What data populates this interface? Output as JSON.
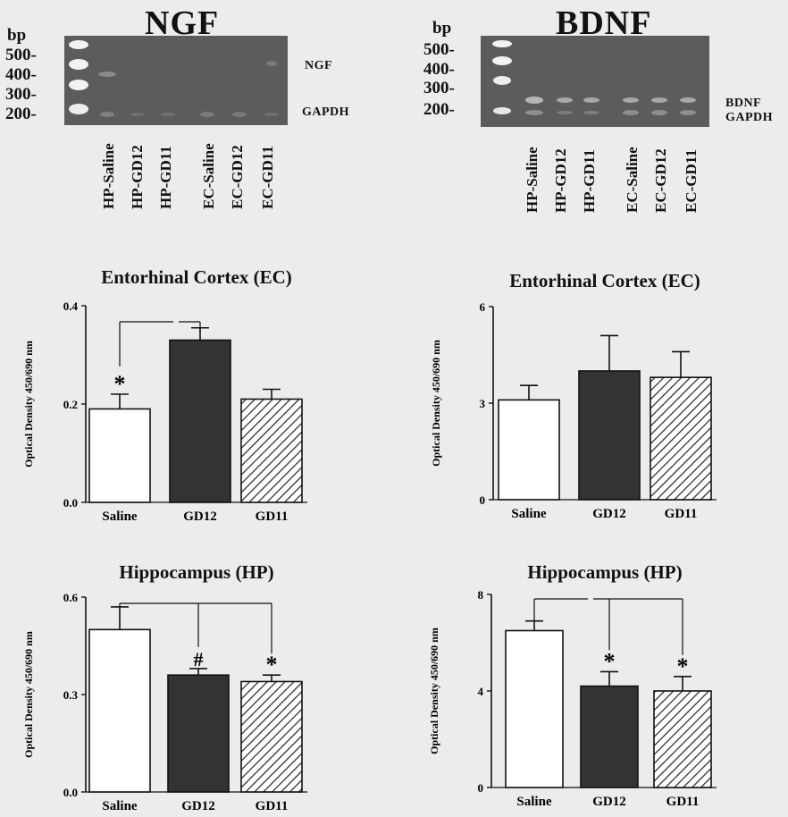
{
  "gels": [
    {
      "title": "NGF",
      "bp_label": "bp",
      "ladder": [
        "500-",
        "400-",
        "300-",
        "200-"
      ],
      "band_labels": [
        "NGF",
        "GAPDH"
      ],
      "lanes": [
        "HP-Saline",
        "HP-GD12",
        "HP-GD11",
        "EC-Saline",
        "EC-GD12",
        "EC-GD11"
      ]
    },
    {
      "title": "BDNF",
      "bp_label": "bp",
      "ladder": [
        "500-",
        "400-",
        "300-",
        "200-"
      ],
      "band_labels": [
        "BDNF",
        "GAPDH"
      ],
      "lanes": [
        "HP-Saline",
        "HP-GD12",
        "HP-GD11",
        "EC-Saline",
        "EC-GD12",
        "EC-GD11"
      ]
    }
  ],
  "chart_data": [
    {
      "type": "bar",
      "title": "Entorhinal Cortex (EC)",
      "ylabel": "Optical Density 450/690 nm",
      "categories": [
        "Saline",
        "GD12",
        "GD11"
      ],
      "values": [
        0.19,
        0.33,
        0.21
      ],
      "errors": [
        0.03,
        0.025,
        0.02
      ],
      "ylim": [
        0,
        0.4
      ],
      "yticks": [
        "0.0",
        "0.2",
        "0.4"
      ],
      "fills": [
        "white",
        "dark",
        "hatch"
      ],
      "sig_marks": [
        "*",
        "",
        ""
      ]
    },
    {
      "type": "bar",
      "title": "Entorhinal Cortex (EC)",
      "ylabel": "Optical Density 450/690 nm",
      "categories": [
        "Saline",
        "GD12",
        "GD11"
      ],
      "values": [
        3.1,
        4.0,
        3.8
      ],
      "errors": [
        0.45,
        1.1,
        0.8
      ],
      "ylim": [
        0,
        6
      ],
      "yticks": [
        "0",
        "3",
        "6"
      ],
      "fills": [
        "white",
        "dark",
        "hatch"
      ],
      "sig_marks": [
        "",
        "",
        ""
      ]
    },
    {
      "type": "bar",
      "title": "Hippocampus (HP)",
      "ylabel": "Optical Density 450/690 nm",
      "categories": [
        "Saline",
        "GD12",
        "GD11"
      ],
      "values": [
        0.5,
        0.36,
        0.34
      ],
      "errors": [
        0.07,
        0.02,
        0.02
      ],
      "ylim": [
        0,
        0.6
      ],
      "yticks": [
        "0.0",
        "0.3",
        "0.6"
      ],
      "fills": [
        "white",
        "dark",
        "hatch"
      ],
      "sig_marks": [
        "",
        "#",
        "*"
      ]
    },
    {
      "type": "bar",
      "title": "Hippocampus (HP)",
      "ylabel": "Optical Density 450/690 nm",
      "categories": [
        "Saline",
        "GD12",
        "GD11"
      ],
      "values": [
        6.5,
        4.2,
        4.0
      ],
      "errors": [
        0.4,
        0.6,
        0.6
      ],
      "ylim": [
        0,
        8
      ],
      "yticks": [
        "0",
        "4",
        "8"
      ],
      "fills": [
        "white",
        "dark",
        "hatch"
      ],
      "sig_marks": [
        "",
        "*",
        "*"
      ]
    }
  ]
}
